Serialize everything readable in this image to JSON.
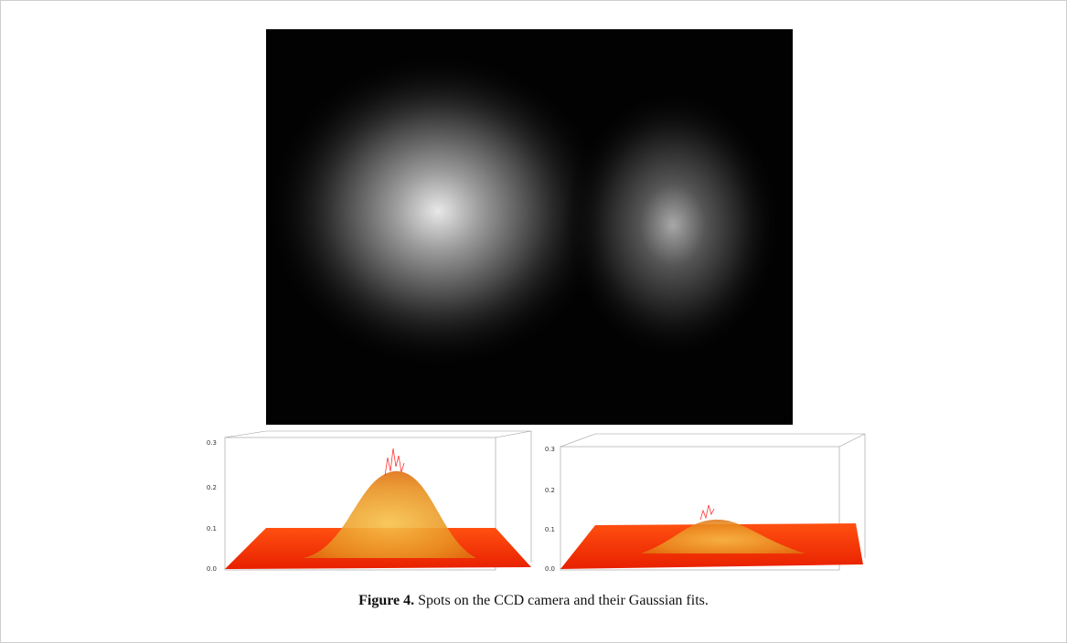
{
  "plots": [
    {
      "zticks": [
        "0.0",
        "0.1",
        "0.2",
        "0.3"
      ]
    },
    {
      "zticks": [
        "0.0",
        "0.1",
        "0.2",
        "0.3"
      ]
    }
  ],
  "caption": {
    "label": "Figure 4.",
    "text": "Spots on the CCD camera and their Gaussian fits."
  }
}
